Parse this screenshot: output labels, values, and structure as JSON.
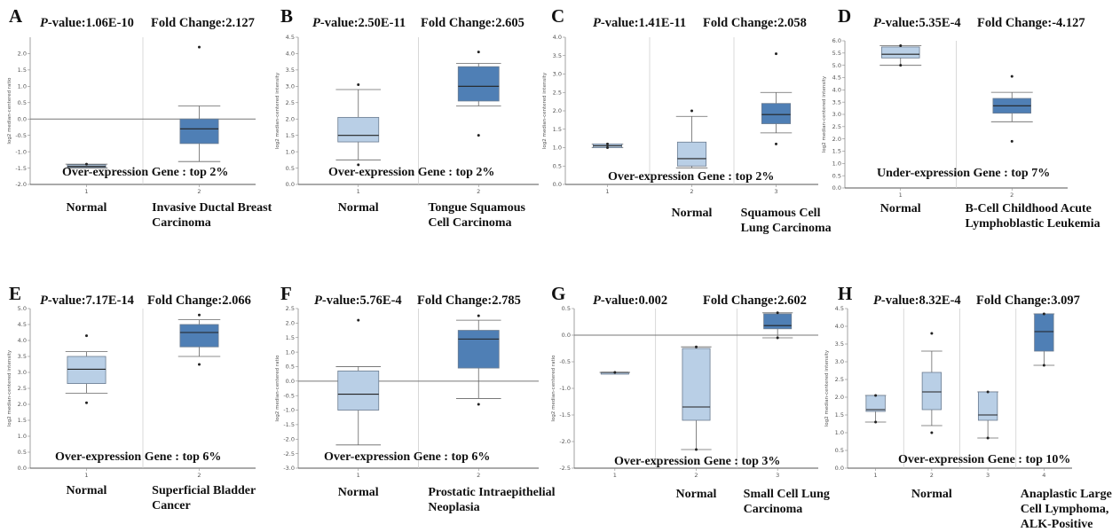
{
  "colors": {
    "normal_box": "#b9cfe6",
    "tumor_box": "#4f7fb5",
    "axis": "#8a8a8a",
    "zero_line": "#777777",
    "text": "#111111"
  },
  "chart_data": [
    {
      "type": "box",
      "panel": "A",
      "stats": {
        "p_label": "P",
        "p_value": "-value:1.06E-10",
        "fold_change": "Fold Change:2.127"
      },
      "ylabel": "log2 median-centered ratio",
      "ylim": [
        -2.0,
        2.5
      ],
      "yticks": [
        -2.0,
        -1.5,
        -1.0,
        -0.5,
        0.0,
        0.5,
        1.0,
        1.5,
        2.0
      ],
      "reference_line": 0.0,
      "note": "Over-expression Gene : top 2%",
      "categories": [
        {
          "tick": "1",
          "label_lines": [
            "Normal"
          ],
          "shade": "normal",
          "min": -1.5,
          "q1": -1.48,
          "median": -1.45,
          "q3": -1.4,
          "max": -1.38,
          "outliers": [
            -1.38
          ]
        },
        {
          "tick": "2",
          "label_lines": [
            "Invasive Ductal Breast",
            "Carcinoma"
          ],
          "shade": "tumor",
          "min": -1.3,
          "q1": -0.75,
          "median": -0.3,
          "q3": 0.0,
          "max": 0.4,
          "outliers": [
            2.2
          ]
        }
      ]
    },
    {
      "type": "box",
      "panel": "B",
      "stats": {
        "p_label": "P",
        "p_value": "-value:2.50E-11",
        "fold_change": "Fold Change:2.605"
      },
      "ylabel": "log2 median-centered intensity",
      "ylim": [
        0.0,
        4.5
      ],
      "yticks": [
        0.0,
        0.5,
        1.0,
        1.5,
        2.0,
        2.5,
        3.0,
        3.5,
        4.0,
        4.5
      ],
      "reference_line": null,
      "note": "Over-expression Gene : top 2%",
      "categories": [
        {
          "tick": "1",
          "label_lines": [
            "Normal"
          ],
          "shade": "normal",
          "min": 0.75,
          "q1": 1.3,
          "median": 1.5,
          "q3": 2.05,
          "max": 2.9,
          "outliers": [
            3.05,
            0.6
          ]
        },
        {
          "tick": "2",
          "label_lines": [
            "Tongue Squamous",
            "Cell Carcinoma"
          ],
          "shade": "tumor",
          "min": 2.4,
          "q1": 2.55,
          "median": 3.0,
          "q3": 3.6,
          "max": 3.7,
          "outliers": [
            4.05,
            1.5
          ]
        }
      ]
    },
    {
      "type": "box",
      "panel": "C",
      "stats": {
        "p_label": "P",
        "p_value": "-value:1.41E-11",
        "fold_change": "Fold Change:2.058"
      },
      "ylabel": "log2 median-centered intensity",
      "ylim": [
        0.0,
        4.0
      ],
      "yticks": [
        0.0,
        0.5,
        1.0,
        1.5,
        2.0,
        2.5,
        3.0,
        3.5,
        4.0
      ],
      "reference_line": null,
      "note": "Over-expression Gene : top 2%",
      "categories": [
        {
          "tick": "1",
          "label_lines": [
            ""
          ],
          "shade": "normal",
          "min": 1.0,
          "q1": 1.0,
          "median": 1.05,
          "q3": 1.1,
          "max": 1.1,
          "outliers": [
            1.1,
            1.0
          ]
        },
        {
          "tick": "2",
          "label_lines": [
            "Normal"
          ],
          "shade": "normal",
          "min": 0.45,
          "q1": 0.5,
          "median": 0.7,
          "q3": 1.15,
          "max": 1.85,
          "outliers": [
            2.0
          ]
        },
        {
          "tick": "3",
          "label_lines": [
            "Squamous Cell",
            "Lung Carcinoma"
          ],
          "shade": "tumor",
          "min": 1.4,
          "q1": 1.65,
          "median": 1.9,
          "q3": 2.2,
          "max": 2.5,
          "outliers": [
            3.55,
            1.1
          ]
        }
      ]
    },
    {
      "type": "box",
      "panel": "D",
      "stats": {
        "p_label": "P",
        "p_value": "-value:5.35E-4",
        "fold_change": "Fold Change:-4.127"
      },
      "ylabel": "log2 median-centered intensity",
      "ylim": [
        0.0,
        6.0
      ],
      "yticks": [
        0.0,
        0.5,
        1.0,
        1.5,
        2.0,
        2.5,
        3.0,
        3.5,
        4.0,
        4.5,
        5.0,
        5.5,
        6.0
      ],
      "reference_line": null,
      "note": "Under-expression Gene : top 7%",
      "categories": [
        {
          "tick": "1",
          "label_lines": [
            "Normal"
          ],
          "shade": "normal",
          "min": 5.0,
          "q1": 5.3,
          "median": 5.45,
          "q3": 5.75,
          "max": 5.8,
          "outliers": [
            5.8,
            5.0
          ]
        },
        {
          "tick": "2",
          "label_lines": [
            "B-Cell Childhood Acute",
            "Lymphoblastic Leukemia"
          ],
          "shade": "tumor",
          "min": 2.7,
          "q1": 3.05,
          "median": 3.35,
          "q3": 3.65,
          "max": 3.9,
          "outliers": [
            4.55,
            1.9
          ]
        }
      ]
    },
    {
      "type": "box",
      "panel": "E",
      "stats": {
        "p_label": "P",
        "p_value": "-value:7.17E-14",
        "fold_change": "Fold Change:2.066"
      },
      "ylabel": "log2 median-centered intensity",
      "ylim": [
        0.0,
        5.0
      ],
      "yticks": [
        0.0,
        0.5,
        1.0,
        1.5,
        2.0,
        2.5,
        3.0,
        3.5,
        4.0,
        4.5,
        5.0
      ],
      "reference_line": null,
      "note": "Over-expression Gene : top 6%",
      "categories": [
        {
          "tick": "1",
          "label_lines": [
            "Normal"
          ],
          "shade": "normal",
          "min": 2.35,
          "q1": 2.65,
          "median": 3.1,
          "q3": 3.5,
          "max": 3.65,
          "outliers": [
            4.15,
            2.05
          ]
        },
        {
          "tick": "2",
          "label_lines": [
            "Superficial Bladder",
            "Cancer"
          ],
          "shade": "tumor",
          "min": 3.5,
          "q1": 3.8,
          "median": 4.25,
          "q3": 4.5,
          "max": 4.65,
          "outliers": [
            4.8,
            3.25
          ]
        }
      ]
    },
    {
      "type": "box",
      "panel": "F",
      "stats": {
        "p_label": "P",
        "p_value": "-value:5.76E-4",
        "fold_change": "Fold Change:2.785"
      },
      "ylabel": "log2 median-centered ratio",
      "ylim": [
        -3.0,
        2.5
      ],
      "yticks": [
        -3.0,
        -2.5,
        -2.0,
        -1.5,
        -1.0,
        -0.5,
        0.0,
        0.5,
        1.0,
        1.5,
        2.0,
        2.5
      ],
      "reference_line": 0.0,
      "note": "Over-expression Gene : top 6%",
      "categories": [
        {
          "tick": "1",
          "label_lines": [
            "Normal"
          ],
          "shade": "normal",
          "min": -2.2,
          "q1": -1.0,
          "median": -0.45,
          "q3": 0.35,
          "max": 0.5,
          "outliers": [
            2.1
          ]
        },
        {
          "tick": "2",
          "label_lines": [
            "Prostatic Intraepithelial",
            "Neoplasia"
          ],
          "shade": "tumor",
          "min": -0.6,
          "q1": 0.45,
          "median": 1.45,
          "q3": 1.75,
          "max": 2.1,
          "outliers": [
            2.25,
            -0.8
          ]
        }
      ]
    },
    {
      "type": "box",
      "panel": "G",
      "stats": {
        "p_label": "P",
        "p_value": "-value:0.002",
        "fold_change": "Fold Change:2.602"
      },
      "ylabel": "log2 median-centered ratio",
      "ylim": [
        -2.5,
        0.5
      ],
      "yticks": [
        -2.5,
        -2.0,
        -1.5,
        -1.0,
        -0.5,
        0.0,
        0.5
      ],
      "reference_line": 0.0,
      "note": "Over-expression Gene : top 3%",
      "categories": [
        {
          "tick": "1",
          "label_lines": [
            ""
          ],
          "shade": "normal",
          "min": -0.7,
          "q1": -0.7,
          "median": -0.7,
          "q3": -0.7,
          "max": -0.7,
          "outliers": [
            -0.7
          ]
        },
        {
          "tick": "2",
          "label_lines": [
            "Normal"
          ],
          "shade": "normal",
          "min": -2.15,
          "q1": -1.6,
          "median": -1.35,
          "q3": -0.25,
          "max": -0.22,
          "outliers": [
            -0.22,
            -2.15
          ]
        },
        {
          "tick": "3",
          "label_lines": [
            "Small Cell Lung",
            "Carcinoma"
          ],
          "shade": "tumor",
          "min": -0.05,
          "q1": 0.12,
          "median": 0.18,
          "q3": 0.4,
          "max": 0.42,
          "outliers": [
            0.42,
            -0.05
          ]
        }
      ]
    },
    {
      "type": "box",
      "panel": "H",
      "stats": {
        "p_label": "P",
        "p_value": "-value:8.32E-4",
        "fold_change": "Fold Change:3.097"
      },
      "ylabel": "log2 median-centered intensity",
      "ylim": [
        0.0,
        4.5
      ],
      "yticks": [
        0.0,
        0.5,
        1.0,
        1.5,
        2.0,
        2.5,
        3.0,
        3.5,
        4.0,
        4.5
      ],
      "reference_line": null,
      "note": "Over-expression Gene : top 10%",
      "categories": [
        {
          "tick": "1",
          "label_lines": [
            ""
          ],
          "shade": "normal",
          "min": 1.3,
          "q1": 1.6,
          "median": 1.65,
          "q3": 2.05,
          "max": 2.05,
          "outliers": [
            2.05,
            1.3
          ]
        },
        {
          "tick": "2",
          "label_lines": [
            "Normal"
          ],
          "shade": "normal",
          "min": 1.2,
          "q1": 1.65,
          "median": 2.15,
          "q3": 2.7,
          "max": 3.3,
          "outliers": [
            3.8,
            1.0
          ]
        },
        {
          "tick": "3",
          "label_lines": [
            ""
          ],
          "shade": "normal",
          "min": 0.85,
          "q1": 1.35,
          "median": 1.5,
          "q3": 2.15,
          "max": 2.15,
          "outliers": [
            2.15,
            0.85
          ]
        },
        {
          "tick": "4",
          "label_lines": [
            "Anaplastic Large",
            "Cell Lymphoma,",
            "ALK-Positive"
          ],
          "shade": "tumor",
          "min": 2.9,
          "q1": 3.3,
          "median": 3.85,
          "q3": 4.35,
          "max": 4.35,
          "outliers": [
            4.35,
            2.9
          ]
        }
      ]
    }
  ]
}
